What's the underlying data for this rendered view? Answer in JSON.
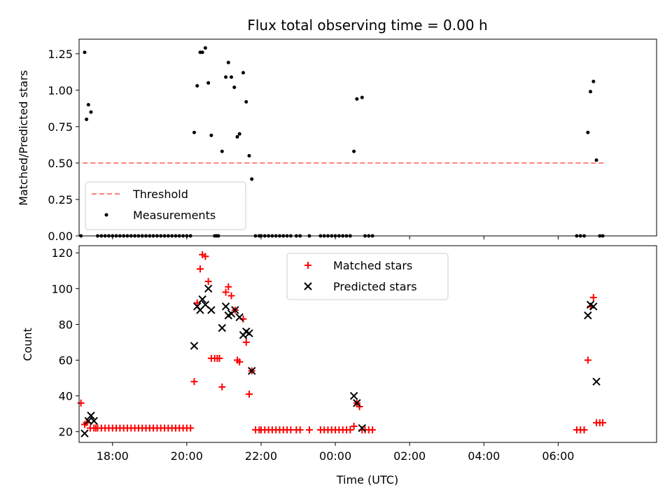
{
  "chart_data": [
    {
      "type": "scatter",
      "title": "Flux total observing time = 0.00 h",
      "xlabel": "",
      "ylabel": "Matched/Predicted stars",
      "ylim": [
        0,
        1.35
      ],
      "yticks": [
        0,
        0.25,
        0.5,
        0.75,
        1.0,
        1.25
      ],
      "ytick_labels": [
        "0.00",
        "0.25",
        "0.50",
        "0.75",
        "1.00",
        "1.25"
      ],
      "xlim": [
        17.1,
        32.65
      ],
      "xticks": [
        18,
        20,
        22,
        24,
        26,
        28,
        30
      ],
      "xtick_labels": [
        "",
        "",
        "",
        "",
        "",
        "",
        ""
      ],
      "legend_position": "bottom-left",
      "threshold": {
        "name": "Threshold",
        "color": "#ff7f7f",
        "x": [
          17.2,
          31.3
        ],
        "y": 0.5
      },
      "series": [
        {
          "name": "Measurements",
          "color": "#000000",
          "points": [
            [
              17.15,
              0
            ],
            [
              17.25,
              1.26
            ],
            [
              17.3,
              0.8
            ],
            [
              17.35,
              0.9
            ],
            [
              17.42,
              0.85
            ],
            [
              17.6,
              0
            ],
            [
              17.7,
              0
            ],
            [
              17.8,
              0
            ],
            [
              17.9,
              0
            ],
            [
              18.0,
              0
            ],
            [
              18.1,
              0
            ],
            [
              18.2,
              0
            ],
            [
              18.3,
              0
            ],
            [
              18.4,
              0
            ],
            [
              18.5,
              0
            ],
            [
              18.6,
              0
            ],
            [
              18.7,
              0
            ],
            [
              18.8,
              0
            ],
            [
              18.9,
              0
            ],
            [
              19.0,
              0
            ],
            [
              19.1,
              0
            ],
            [
              19.2,
              0
            ],
            [
              19.3,
              0
            ],
            [
              19.4,
              0
            ],
            [
              19.5,
              0
            ],
            [
              19.6,
              0
            ],
            [
              19.7,
              0
            ],
            [
              19.8,
              0
            ],
            [
              19.9,
              0
            ],
            [
              20.0,
              0
            ],
            [
              20.1,
              0
            ],
            [
              20.2,
              0.71
            ],
            [
              20.28,
              1.03
            ],
            [
              20.36,
              1.26
            ],
            [
              20.42,
              1.26
            ],
            [
              20.5,
              1.29
            ],
            [
              20.58,
              1.05
            ],
            [
              20.66,
              0.69
            ],
            [
              20.75,
              0
            ],
            [
              20.8,
              0
            ],
            [
              20.85,
              0
            ],
            [
              20.95,
              0.58
            ],
            [
              21.05,
              1.09
            ],
            [
              21.12,
              1.19
            ],
            [
              21.2,
              1.09
            ],
            [
              21.28,
              1.02
            ],
            [
              21.36,
              0.68
            ],
            [
              21.42,
              0.7
            ],
            [
              21.52,
              1.12
            ],
            [
              21.6,
              0.92
            ],
            [
              21.68,
              0.55
            ],
            [
              21.75,
              0.39
            ],
            [
              21.85,
              0
            ],
            [
              21.95,
              0
            ],
            [
              22.0,
              0
            ],
            [
              22.1,
              0
            ],
            [
              22.2,
              0
            ],
            [
              22.3,
              0
            ],
            [
              22.4,
              0
            ],
            [
              22.5,
              0
            ],
            [
              22.6,
              0
            ],
            [
              22.7,
              0
            ],
            [
              22.8,
              0
            ],
            [
              22.95,
              0
            ],
            [
              23.05,
              0
            ],
            [
              23.3,
              0
            ],
            [
              23.6,
              0
            ],
            [
              23.7,
              0
            ],
            [
              23.8,
              0
            ],
            [
              23.9,
              0
            ],
            [
              24.0,
              0
            ],
            [
              24.1,
              0
            ],
            [
              24.2,
              0
            ],
            [
              24.3,
              0
            ],
            [
              24.4,
              0
            ],
            [
              24.5,
              0.58
            ],
            [
              24.58,
              0.94
            ],
            [
              24.72,
              0.95
            ],
            [
              24.8,
              0
            ],
            [
              24.9,
              0
            ],
            [
              25.0,
              0
            ],
            [
              30.5,
              0
            ],
            [
              30.6,
              0
            ],
            [
              30.7,
              0
            ],
            [
              30.8,
              0.71
            ],
            [
              30.87,
              0.99
            ],
            [
              30.95,
              1.06
            ],
            [
              31.03,
              0.52
            ],
            [
              31.12,
              0
            ],
            [
              31.2,
              0
            ]
          ]
        }
      ]
    },
    {
      "type": "scatter",
      "title": "",
      "xlabel": "Time (UTC)",
      "ylabel": "Count",
      "ylim": [
        14,
        124
      ],
      "yticks": [
        20,
        40,
        60,
        80,
        100,
        120
      ],
      "ytick_labels": [
        "20",
        "40",
        "60",
        "80",
        "100",
        "120"
      ],
      "xlim": [
        17.1,
        32.65
      ],
      "xticks": [
        18,
        20,
        22,
        24,
        26,
        28,
        30
      ],
      "xtick_labels": [
        "18:00",
        "20:00",
        "22:00",
        "00:00",
        "02:00",
        "04:00",
        "06:00"
      ],
      "legend_position": "top-center",
      "series": [
        {
          "name": "Matched stars",
          "color": "#ff0000",
          "marker": "plus",
          "points": [
            [
              17.15,
              36
            ],
            [
              17.25,
              24
            ],
            [
              17.3,
              25
            ],
            [
              17.4,
              22
            ],
            [
              17.5,
              22
            ],
            [
              17.55,
              22
            ],
            [
              17.6,
              22
            ],
            [
              17.7,
              22
            ],
            [
              17.8,
              22
            ],
            [
              17.9,
              22
            ],
            [
              18.0,
              22
            ],
            [
              18.1,
              22
            ],
            [
              18.2,
              22
            ],
            [
              18.3,
              22
            ],
            [
              18.4,
              22
            ],
            [
              18.5,
              22
            ],
            [
              18.6,
              22
            ],
            [
              18.7,
              22
            ],
            [
              18.8,
              22
            ],
            [
              18.9,
              22
            ],
            [
              19.0,
              22
            ],
            [
              19.1,
              22
            ],
            [
              19.2,
              22
            ],
            [
              19.3,
              22
            ],
            [
              19.4,
              22
            ],
            [
              19.5,
              22
            ],
            [
              19.6,
              22
            ],
            [
              19.7,
              22
            ],
            [
              19.8,
              22
            ],
            [
              19.9,
              22
            ],
            [
              20.0,
              22
            ],
            [
              20.1,
              22
            ],
            [
              20.2,
              48
            ],
            [
              20.28,
              92
            ],
            [
              20.36,
              111
            ],
            [
              20.42,
              119
            ],
            [
              20.5,
              118
            ],
            [
              20.58,
              104
            ],
            [
              20.66,
              61
            ],
            [
              20.75,
              61
            ],
            [
              20.82,
              61
            ],
            [
              20.88,
              61
            ],
            [
              20.95,
              45
            ],
            [
              21.05,
              98
            ],
            [
              21.12,
              101
            ],
            [
              21.2,
              96
            ],
            [
              21.3,
              88
            ],
            [
              21.36,
              60
            ],
            [
              21.42,
              59
            ],
            [
              21.52,
              83
            ],
            [
              21.6,
              70
            ],
            [
              21.68,
              41
            ],
            [
              21.75,
              54
            ],
            [
              21.85,
              21
            ],
            [
              21.95,
              21
            ],
            [
              22.0,
              21
            ],
            [
              22.1,
              21
            ],
            [
              22.2,
              21
            ],
            [
              22.3,
              21
            ],
            [
              22.4,
              21
            ],
            [
              22.5,
              21
            ],
            [
              22.6,
              21
            ],
            [
              22.7,
              21
            ],
            [
              22.8,
              21
            ],
            [
              22.95,
              21
            ],
            [
              23.05,
              21
            ],
            [
              23.3,
              21
            ],
            [
              23.6,
              21
            ],
            [
              23.7,
              21
            ],
            [
              23.8,
              21
            ],
            [
              23.9,
              21
            ],
            [
              24.0,
              21
            ],
            [
              24.1,
              21
            ],
            [
              24.2,
              21
            ],
            [
              24.3,
              21
            ],
            [
              24.4,
              21
            ],
            [
              24.5,
              23
            ],
            [
              24.58,
              36
            ],
            [
              24.65,
              34
            ],
            [
              24.72,
              21
            ],
            [
              24.8,
              21
            ],
            [
              24.9,
              21
            ],
            [
              25.0,
              21
            ],
            [
              30.5,
              21
            ],
            [
              30.6,
              21
            ],
            [
              30.7,
              21
            ],
            [
              30.8,
              60
            ],
            [
              30.87,
              90
            ],
            [
              30.95,
              95
            ],
            [
              31.03,
              25
            ],
            [
              31.12,
              25
            ],
            [
              31.2,
              25
            ]
          ]
        },
        {
          "name": "Predicted stars",
          "color": "#000000",
          "marker": "x",
          "points": [
            [
              17.25,
              19
            ],
            [
              17.35,
              26
            ],
            [
              17.42,
              29
            ],
            [
              17.5,
              26
            ],
            [
              20.2,
              68
            ],
            [
              20.28,
              90
            ],
            [
              20.36,
              88
            ],
            [
              20.42,
              94
            ],
            [
              20.5,
              91
            ],
            [
              20.58,
              100
            ],
            [
              20.66,
              88
            ],
            [
              20.95,
              78
            ],
            [
              21.05,
              90
            ],
            [
              21.12,
              85
            ],
            [
              21.2,
              86
            ],
            [
              21.3,
              88
            ],
            [
              21.42,
              84
            ],
            [
              21.52,
              74
            ],
            [
              21.6,
              76
            ],
            [
              21.68,
              75
            ],
            [
              21.75,
              54
            ],
            [
              24.5,
              40
            ],
            [
              24.58,
              36
            ],
            [
              24.72,
              22
            ],
            [
              30.8,
              85
            ],
            [
              30.87,
              91
            ],
            [
              30.95,
              90
            ],
            [
              31.03,
              48
            ]
          ]
        }
      ]
    }
  ]
}
